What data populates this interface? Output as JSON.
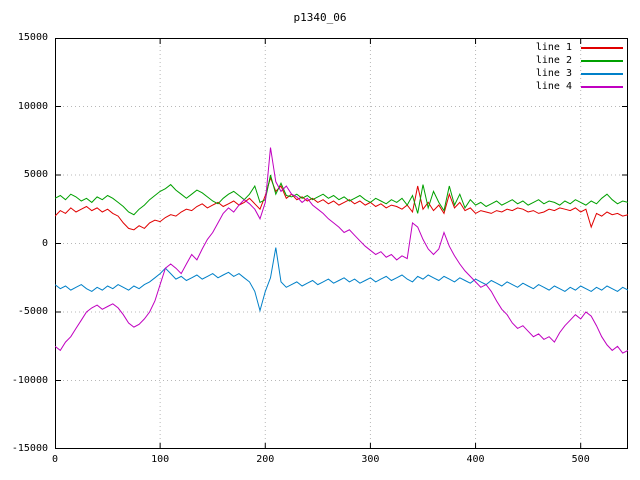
{
  "chart_data": {
    "type": "line",
    "title": "p1340_06",
    "xlabel": "",
    "ylabel": "",
    "xlim": [
      0,
      545
    ],
    "ylim": [
      -15000,
      15000
    ],
    "xticks": [
      0,
      100,
      200,
      300,
      400,
      500
    ],
    "yticks": [
      -15000,
      -10000,
      -5000,
      0,
      5000,
      10000,
      15000
    ],
    "grid": true,
    "legend_position": "top-right",
    "colors": {
      "background": "#ffffff",
      "axis": "#000000",
      "grid": "#b8b8b8"
    },
    "x": [
      0,
      5,
      10,
      15,
      20,
      25,
      30,
      35,
      40,
      45,
      50,
      55,
      60,
      65,
      70,
      75,
      80,
      85,
      90,
      95,
      100,
      105,
      110,
      115,
      120,
      125,
      130,
      135,
      140,
      145,
      150,
      155,
      160,
      165,
      170,
      175,
      180,
      185,
      190,
      195,
      200,
      205,
      210,
      215,
      220,
      225,
      230,
      235,
      240,
      245,
      250,
      255,
      260,
      265,
      270,
      275,
      280,
      285,
      290,
      295,
      300,
      305,
      310,
      315,
      320,
      325,
      330,
      335,
      340,
      345,
      350,
      355,
      360,
      365,
      370,
      375,
      380,
      385,
      390,
      395,
      400,
      405,
      410,
      415,
      420,
      425,
      430,
      435,
      440,
      445,
      450,
      455,
      460,
      465,
      470,
      475,
      480,
      485,
      490,
      495,
      500,
      505,
      510,
      515,
      520,
      525,
      530,
      535,
      540,
      545
    ],
    "series": [
      {
        "name": "line 1",
        "color": "#e00000",
        "values": [
          2000,
          2400,
          2200,
          2600,
          2300,
          2500,
          2700,
          2400,
          2600,
          2300,
          2500,
          2200,
          2000,
          1500,
          1100,
          1000,
          1300,
          1100,
          1500,
          1700,
          1600,
          1900,
          2100,
          2000,
          2300,
          2500,
          2400,
          2700,
          2900,
          2600,
          2800,
          3000,
          2700,
          2900,
          3100,
          2800,
          3000,
          3300,
          2900,
          2500,
          3500,
          4800,
          3800,
          4200,
          3300,
          3600,
          3200,
          3400,
          3100,
          3300,
          3000,
          3200,
          2900,
          3100,
          2800,
          3000,
          3200,
          2900,
          3100,
          2800,
          3000,
          2700,
          2900,
          2600,
          2800,
          2700,
          2500,
          2800,
          2300,
          4200,
          2500,
          3000,
          2400,
          2800,
          2200,
          3600,
          2600,
          3000,
          2400,
          2600,
          2200,
          2400,
          2300,
          2200,
          2400,
          2300,
          2500,
          2400,
          2600,
          2500,
          2300,
          2400,
          2200,
          2300,
          2500,
          2400,
          2600,
          2500,
          2400,
          2600,
          2300,
          2500,
          1200,
          2200,
          2000,
          2300,
          2100,
          2200,
          2000,
          2100
        ]
      },
      {
        "name": "line 2",
        "color": "#00a000",
        "values": [
          3300,
          3500,
          3200,
          3600,
          3400,
          3100,
          3300,
          3000,
          3400,
          3200,
          3500,
          3300,
          3000,
          2700,
          2300,
          2100,
          2500,
          2800,
          3200,
          3500,
          3800,
          4000,
          4300,
          3900,
          3600,
          3300,
          3600,
          3900,
          3700,
          3400,
          3100,
          2900,
          3300,
          3600,
          3800,
          3500,
          3200,
          3600,
          4200,
          3000,
          3200,
          5000,
          3600,
          4400,
          3500,
          3400,
          3600,
          3300,
          3500,
          3200,
          3400,
          3600,
          3300,
          3500,
          3200,
          3400,
          3100,
          3300,
          3500,
          3200,
          3000,
          3300,
          3100,
          2900,
          3200,
          3000,
          3300,
          2800,
          3500,
          2200,
          4300,
          2600,
          3800,
          3000,
          2400,
          4200,
          2800,
          3600,
          2600,
          3200,
          2800,
          3000,
          2700,
          2900,
          3100,
          2800,
          3000,
          3200,
          2900,
          3100,
          2800,
          3000,
          3200,
          2900,
          3100,
          3000,
          2800,
          3100,
          2900,
          3200,
          3000,
          2800,
          3100,
          2900,
          3300,
          3600,
          3200,
          2900,
          3100,
          3000
        ]
      },
      {
        "name": "line 3",
        "color": "#0080c8",
        "values": [
          -3000,
          -3300,
          -3100,
          -3400,
          -3200,
          -3000,
          -3300,
          -3500,
          -3200,
          -3400,
          -3100,
          -3300,
          -3000,
          -3200,
          -3400,
          -3100,
          -3300,
          -3000,
          -2800,
          -2500,
          -2200,
          -1800,
          -2200,
          -2600,
          -2400,
          -2700,
          -2500,
          -2300,
          -2600,
          -2400,
          -2200,
          -2500,
          -2300,
          -2100,
          -2400,
          -2200,
          -2500,
          -2800,
          -3500,
          -4900,
          -3500,
          -2500,
          -300,
          -2800,
          -3200,
          -3000,
          -2800,
          -3100,
          -2900,
          -2700,
          -3000,
          -2800,
          -2600,
          -2900,
          -2700,
          -2500,
          -2800,
          -2600,
          -2900,
          -2700,
          -2500,
          -2800,
          -2600,
          -2400,
          -2700,
          -2500,
          -2300,
          -2600,
          -2800,
          -2400,
          -2600,
          -2300,
          -2500,
          -2700,
          -2400,
          -2600,
          -2800,
          -2500,
          -2700,
          -2900,
          -2600,
          -2800,
          -3000,
          -2700,
          -2900,
          -3100,
          -2800,
          -3000,
          -3200,
          -2900,
          -3100,
          -3300,
          -3000,
          -3200,
          -3400,
          -3100,
          -3300,
          -3500,
          -3200,
          -3400,
          -3100,
          -3300,
          -3500,
          -3200,
          -3400,
          -3100,
          -3300,
          -3500,
          -3200,
          -3400
        ]
      },
      {
        "name": "line 4",
        "color": "#c000c0",
        "values": [
          -7500,
          -7800,
          -7200,
          -6800,
          -6200,
          -5600,
          -5000,
          -4700,
          -4500,
          -4800,
          -4600,
          -4400,
          -4700,
          -5200,
          -5800,
          -6100,
          -5900,
          -5500,
          -5000,
          -4200,
          -3000,
          -1800,
          -1500,
          -1800,
          -2200,
          -1500,
          -800,
          -1200,
          -400,
          300,
          800,
          1500,
          2200,
          2600,
          2300,
          2800,
          3200,
          2900,
          2500,
          1800,
          3000,
          7000,
          4500,
          3800,
          4200,
          3600,
          3400,
          3000,
          3300,
          2800,
          2500,
          2200,
          1800,
          1500,
          1200,
          800,
          1000,
          600,
          200,
          -200,
          -500,
          -800,
          -600,
          -1000,
          -800,
          -1200,
          -900,
          -1100,
          1500,
          1200,
          300,
          -400,
          -800,
          -400,
          800,
          -200,
          -900,
          -1500,
          -2000,
          -2400,
          -2800,
          -3200,
          -3000,
          -3500,
          -4200,
          -4800,
          -5200,
          -5800,
          -6200,
          -6000,
          -6400,
          -6800,
          -6600,
          -7000,
          -6800,
          -7200,
          -6500,
          -6000,
          -5600,
          -5200,
          -5500,
          -5000,
          -5300,
          -6000,
          -6800,
          -7400,
          -7800,
          -7500,
          -8000,
          -7800
        ]
      }
    ]
  }
}
